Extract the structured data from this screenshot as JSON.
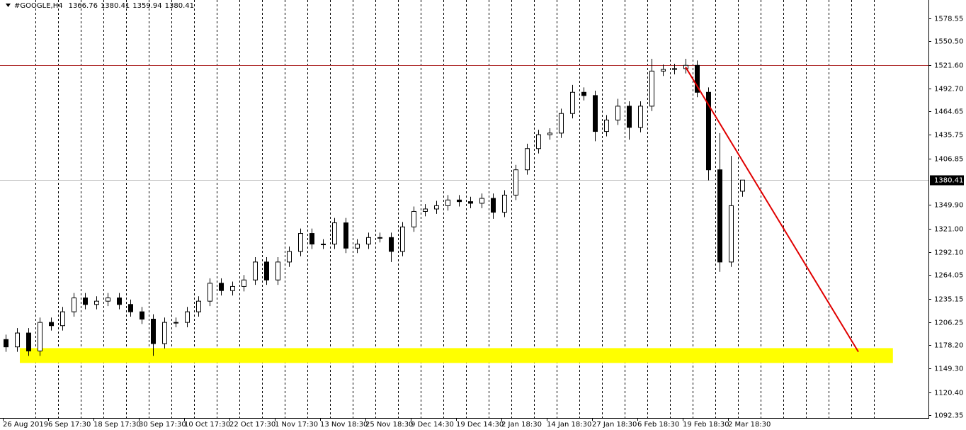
{
  "chart_data": {
    "type": "candlestick",
    "symbol": "#GOOGLE,H4",
    "ohlc": [
      1366.76,
      1380.41,
      1359.94,
      1380.41
    ],
    "last_price": 1380.41,
    "categories": [
      "26 Aug 2019",
      null,
      null,
      null,
      "6 Sep 17:30",
      null,
      null,
      null,
      "18 Sep 17:30",
      null,
      null,
      null,
      "30 Sep 17:30",
      null,
      null,
      null,
      "10 Oct 17:30",
      null,
      null,
      null,
      "22 Oct 17:30",
      null,
      null,
      null,
      "1 Nov 17:30",
      null,
      null,
      null,
      "13 Nov 18:30",
      null,
      null,
      null,
      "25 Nov 18:30",
      null,
      null,
      null,
      "9 Dec 14:30",
      null,
      null,
      null,
      "19 Dec 14:30",
      null,
      null,
      null,
      "2 Jan 18:30",
      null,
      null,
      null,
      "14 Jan 18:30",
      null,
      null,
      null,
      "27 Jan 18:30",
      null,
      null,
      null,
      "6 Feb 18:30",
      null,
      null,
      null,
      "19 Feb 18:30",
      null,
      null,
      null,
      "2 Mar 18:30",
      null
    ],
    "open": [
      1185,
      1176,
      1193,
      1171,
      1206,
      1202,
      1219,
      1236,
      1228,
      1232,
      1236,
      1228,
      1219,
      1210,
      1180,
      1206,
      1206,
      1219,
      1232,
      1254,
      1245,
      1250,
      1258,
      1280,
      1258,
      1280,
      1293,
      1315,
      1302,
      1302,
      1328,
      1297,
      1302,
      1310,
      1310,
      1293,
      1323,
      1342,
      1345,
      1349,
      1356,
      1354,
      1352,
      1358,
      1341,
      1362,
      1393,
      1419,
      1436,
      1438,
      1462,
      1488,
      1484,
      1440,
      1454,
      1471,
      1445,
      1471,
      1514,
      1516,
      1517,
      1521,
      1488,
      1393,
      1280,
      1366.76
    ],
    "high": [
      1191,
      1199,
      1199,
      1212,
      1212,
      1225,
      1242,
      1242,
      1238,
      1242,
      1242,
      1234,
      1225,
      1216,
      1212,
      1212,
      1225,
      1238,
      1260,
      1260,
      1256,
      1264,
      1286,
      1286,
      1286,
      1299,
      1321,
      1321,
      1308,
      1334,
      1334,
      1308,
      1316,
      1316,
      1316,
      1329,
      1348,
      1351,
      1355,
      1362,
      1362,
      1360,
      1364,
      1364,
      1368,
      1399,
      1425,
      1442,
      1444,
      1468,
      1497,
      1494,
      1490,
      1460,
      1480,
      1477,
      1477,
      1529,
      1522,
      1523,
      1529,
      1527,
      1494,
      1438,
      1410,
      1380.41
    ],
    "low": [
      1170,
      1170,
      1165,
      1165,
      1196,
      1196,
      1213,
      1222,
      1222,
      1226,
      1222,
      1213,
      1204,
      1165,
      1174,
      1200,
      1200,
      1213,
      1226,
      1239,
      1239,
      1244,
      1252,
      1252,
      1252,
      1274,
      1287,
      1296,
      1296,
      1296,
      1291,
      1291,
      1296,
      1304,
      1280,
      1287,
      1317,
      1336,
      1339,
      1343,
      1348,
      1346,
      1346,
      1333,
      1335,
      1356,
      1387,
      1413,
      1430,
      1432,
      1456,
      1478,
      1428,
      1434,
      1448,
      1430,
      1439,
      1465,
      1508,
      1510,
      1511,
      1482,
      1380,
      1268,
      1274,
      1359.94
    ],
    "close": [
      1176,
      1193,
      1171,
      1206,
      1202,
      1219,
      1236,
      1228,
      1232,
      1236,
      1228,
      1219,
      1210,
      1180,
      1206,
      1206,
      1219,
      1232,
      1254,
      1245,
      1250,
      1258,
      1280,
      1258,
      1280,
      1293,
      1315,
      1302,
      1302,
      1328,
      1297,
      1302,
      1310,
      1310,
      1293,
      1323,
      1342,
      1345,
      1349,
      1356,
      1354,
      1352,
      1358,
      1341,
      1362,
      1393,
      1419,
      1436,
      1438,
      1462,
      1488,
      1484,
      1440,
      1454,
      1471,
      1445,
      1471,
      1514,
      1516,
      1517,
      1521,
      1488,
      1393,
      1280,
      1349,
      1380.41
    ],
    "up_color": "#ffffff",
    "down_color": "#000000",
    "wick_color": "#000000",
    "ylim": [
      1088.9,
      1601.1
    ],
    "yticks": [
      1578.55,
      {
        "value": 1550.5,
        "label": "1550.50"
      },
      {
        "value": 1521.6,
        "label": "1521.60"
      },
      {
        "value": 1492.7,
        "label": "1492.70"
      },
      1464.65,
      1435.75,
      1406.85,
      {
        "value": 1349.9,
        "label": "1349.90"
      },
      {
        "value": 1321,
        "label": "1321.00"
      },
      {
        "value": 1292.1,
        "label": "1292.10"
      },
      1264.05,
      1235.15,
      1206.25,
      {
        "value": 1178.2,
        "label": "1178.20"
      },
      {
        "value": 1149.3,
        "label": "1149.30"
      },
      {
        "value": 1120.4,
        "label": "1120.40"
      },
      1092.35
    ],
    "grid": true,
    "horizontal_line": {
      "value": 1521.6,
      "color": "#b03030"
    },
    "zone": {
      "from_index": 1.25,
      "to_index": 78.3,
      "low": 1156.3,
      "high": 1174.5,
      "color": "#ffff00"
    },
    "trendline": {
      "x": [
        60,
        75.25
      ],
      "y": [
        1519,
        1170
      ],
      "color": "#e00000"
    }
  }
}
